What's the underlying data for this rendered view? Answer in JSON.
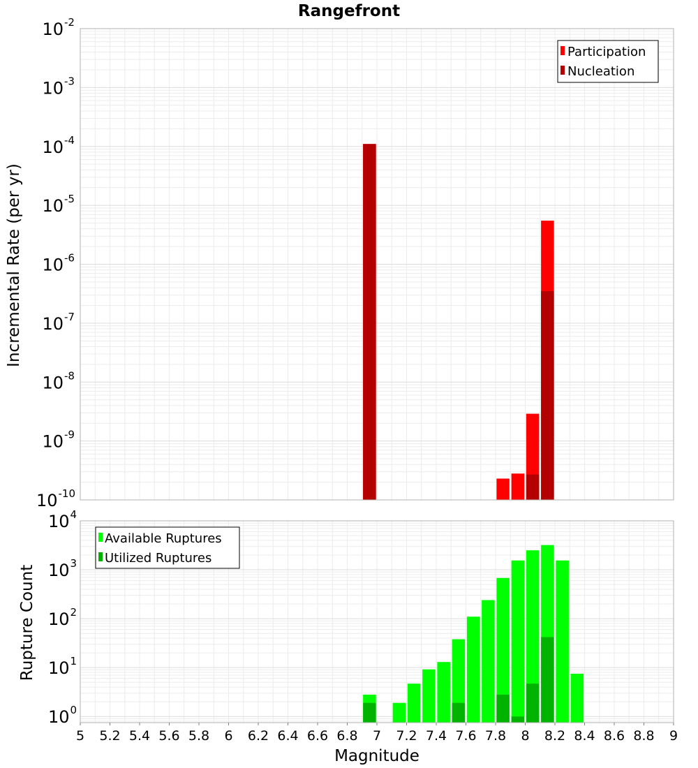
{
  "chart_data": [
    {
      "type": "bar",
      "title": "Rangefront",
      "xlabel": "Magnitude",
      "ylabel": "Incremental Rate (per yr)",
      "xlim": [
        5,
        9
      ],
      "ylim": [
        1e-10,
        0.01
      ],
      "yscale": "log",
      "y_tick_exponents": [
        "-2",
        "-3",
        "-4",
        "-5",
        "-6",
        "-7",
        "-8",
        "-9",
        "-10"
      ],
      "grid": true,
      "legend_position": "top-right",
      "series": [
        {
          "name": "Participation",
          "color": "#ff0000",
          "points": [
            {
              "x": 6.95,
              "y": 0.00011
            },
            {
              "x": 7.85,
              "y": 2.3e-10
            },
            {
              "x": 7.95,
              "y": 2.8e-10
            },
            {
              "x": 8.05,
              "y": 2.9e-09
            },
            {
              "x": 8.15,
              "y": 5.5e-06
            }
          ]
        },
        {
          "name": "Nucleation",
          "color": "#b30000",
          "points": [
            {
              "x": 6.95,
              "y": 0.00011
            },
            {
              "x": 8.05,
              "y": 2.7e-10
            },
            {
              "x": 8.15,
              "y": 3.5e-07
            }
          ]
        }
      ]
    },
    {
      "type": "bar",
      "xlabel": "Magnitude",
      "ylabel": "Rupture Count",
      "xlim": [
        5,
        9
      ],
      "ylim": [
        0.75,
        10000
      ],
      "yscale": "log",
      "y_tick_exponents": [
        "4",
        "3",
        "2",
        "1",
        "0"
      ],
      "x_tick_labels": [
        "5",
        "5.2",
        "5.4",
        "5.6",
        "5.8",
        "6",
        "6.2",
        "6.4",
        "6.6",
        "6.8",
        "7",
        "7.2",
        "7.4",
        "7.6",
        "7.8",
        "8",
        "8.2",
        "8.4",
        "8.6",
        "8.8",
        "9"
      ],
      "grid": true,
      "legend_position": "top-left",
      "series": [
        {
          "name": "Available Ruptures",
          "color": "#00ff00",
          "points": [
            {
              "x": 6.95,
              "y": 2.8
            },
            {
              "x": 7.15,
              "y": 1.9
            },
            {
              "x": 7.25,
              "y": 4.7
            },
            {
              "x": 7.35,
              "y": 9.2
            },
            {
              "x": 7.45,
              "y": 13
            },
            {
              "x": 7.55,
              "y": 38
            },
            {
              "x": 7.65,
              "y": 110
            },
            {
              "x": 7.75,
              "y": 240
            },
            {
              "x": 7.85,
              "y": 680
            },
            {
              "x": 7.95,
              "y": 1550
            },
            {
              "x": 8.05,
              "y": 2500
            },
            {
              "x": 8.15,
              "y": 3200
            },
            {
              "x": 8.25,
              "y": 1550
            },
            {
              "x": 8.35,
              "y": 7.5
            }
          ]
        },
        {
          "name": "Utilized Ruptures",
          "color": "#00b300",
          "points": [
            {
              "x": 6.95,
              "y": 1.9
            },
            {
              "x": 7.55,
              "y": 1.9
            },
            {
              "x": 7.85,
              "y": 2.8
            },
            {
              "x": 7.95,
              "y": 1.0
            },
            {
              "x": 8.05,
              "y": 4.7
            },
            {
              "x": 8.15,
              "y": 42
            }
          ]
        }
      ]
    }
  ]
}
